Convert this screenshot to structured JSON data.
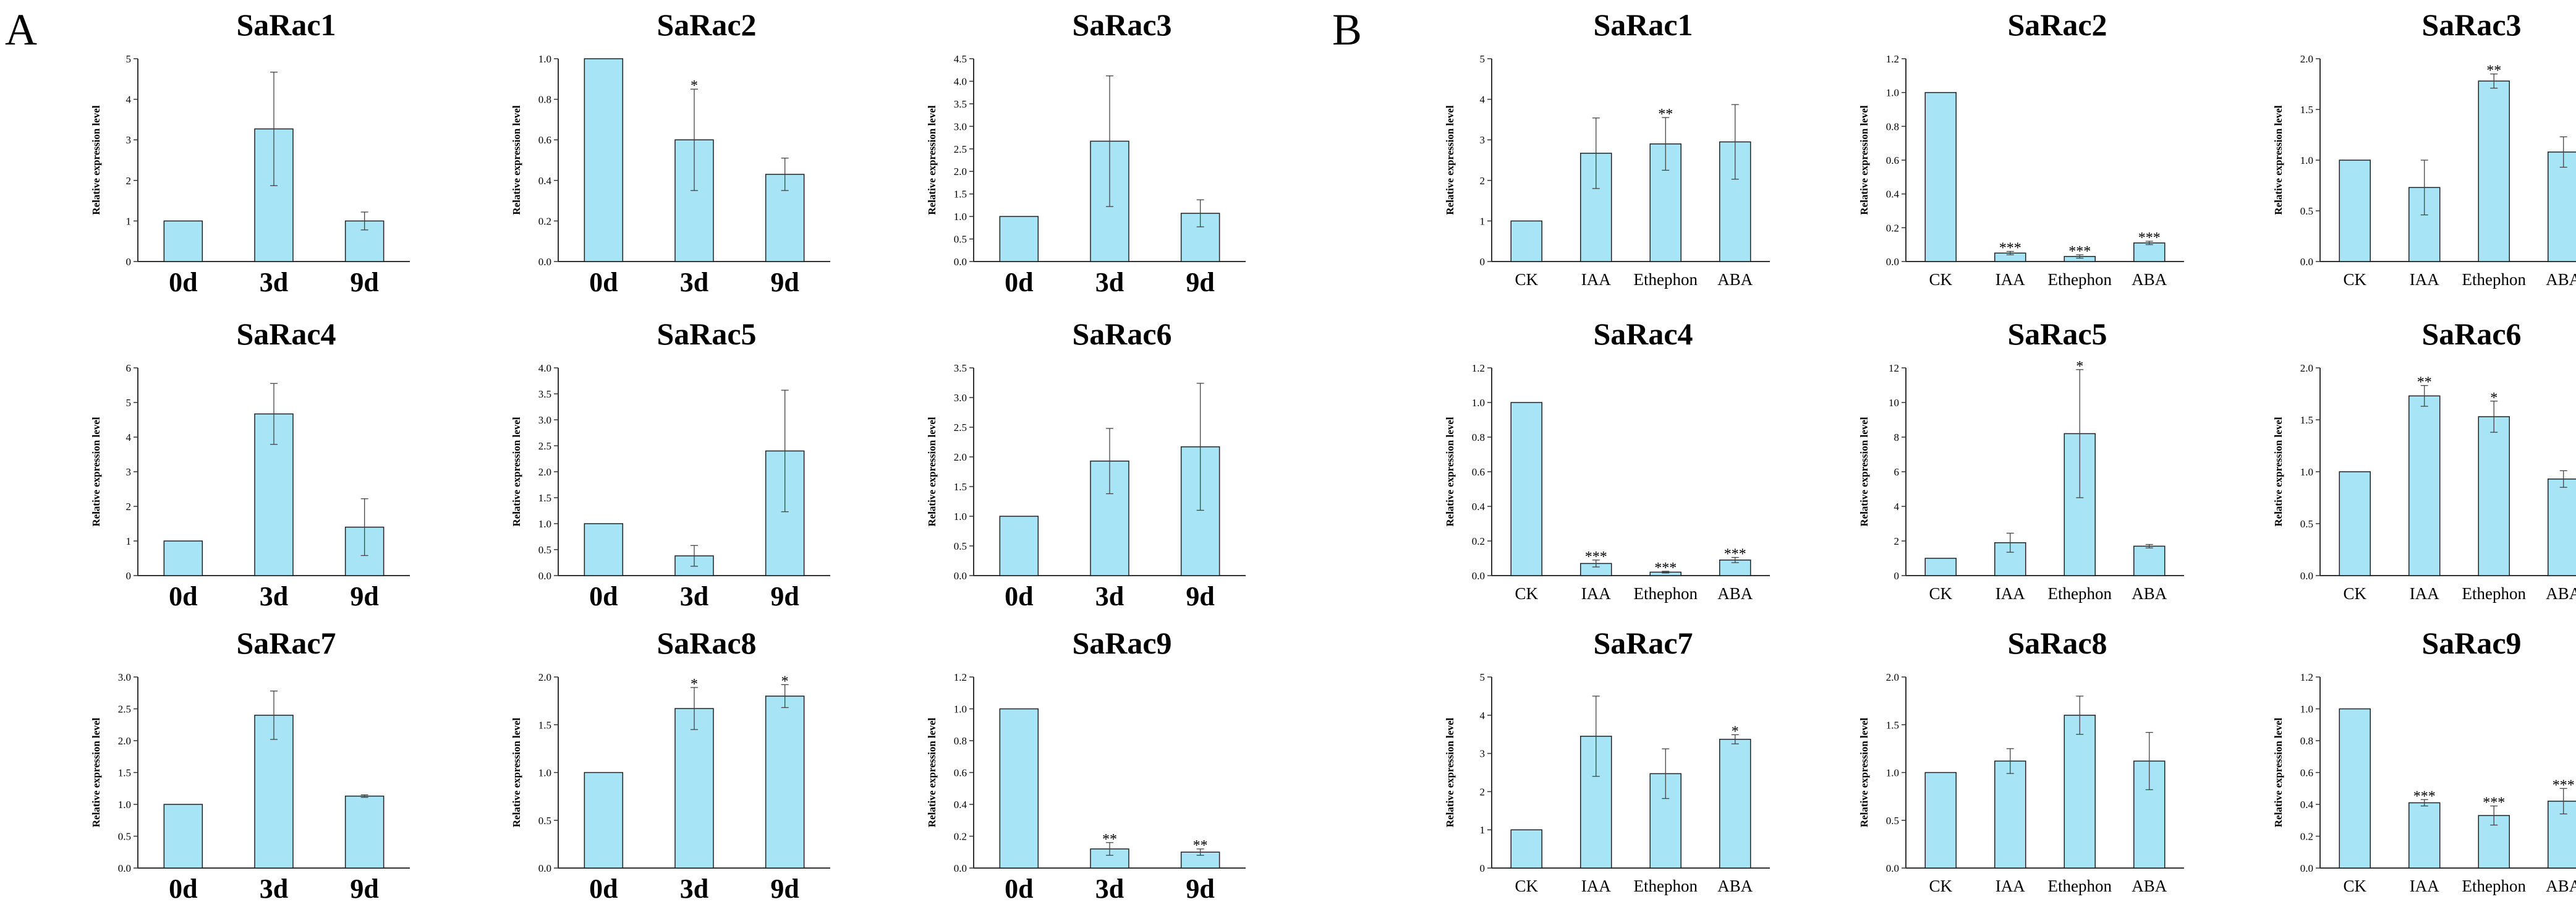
{
  "panels": [
    {
      "label": "A",
      "categories": [
        "0d",
        "3d",
        "9d"
      ]
    },
    {
      "label": "B",
      "categories": [
        "CK",
        "IAA",
        "Ethephon",
        "ABA"
      ]
    }
  ],
  "colors": {
    "bar": "#a6e4f6",
    "bar_edge": "#222222",
    "axis": "#333333"
  },
  "chart_data": [
    {
      "type": "bar",
      "panel": "A",
      "title": "SaRac1",
      "ylabel": "Relative expression level",
      "categories": [
        "0d",
        "3d",
        "9d"
      ],
      "values": [
        1.0,
        3.27,
        1.0
      ],
      "errors": [
        0,
        1.4,
        0.22
      ],
      "significance": [
        "",
        "",
        ""
      ],
      "ylim": [
        0,
        5
      ],
      "yticks": [
        "0",
        "1",
        "2",
        "3",
        "4",
        "5"
      ]
    },
    {
      "type": "bar",
      "panel": "A",
      "title": "SaRac2",
      "ylabel": "Relative expression level",
      "categories": [
        "0d",
        "3d",
        "9d"
      ],
      "values": [
        1.0,
        0.6,
        0.43
      ],
      "errors": [
        0,
        0.25,
        0.08
      ],
      "significance": [
        "",
        "*",
        ""
      ],
      "ylim": [
        0,
        1.0
      ],
      "yticks": [
        "0.0",
        "0.2",
        "0.4",
        "0.6",
        "0.8",
        "1.0"
      ]
    },
    {
      "type": "bar",
      "panel": "A",
      "title": "SaRac3",
      "ylabel": "Relative expression level",
      "categories": [
        "0d",
        "3d",
        "9d"
      ],
      "values": [
        1.0,
        2.67,
        1.07
      ],
      "errors": [
        0,
        1.45,
        0.3
      ],
      "significance": [
        "",
        "",
        ""
      ],
      "ylim": [
        0,
        4.5
      ],
      "yticks": [
        "0.0",
        "0.5",
        "1.0",
        "1.5",
        "2.0",
        "2.5",
        "3.0",
        "3.5",
        "4.0",
        "4.5"
      ]
    },
    {
      "type": "bar",
      "panel": "A",
      "title": "SaRac4",
      "ylabel": "Relative expression level",
      "categories": [
        "0d",
        "3d",
        "9d"
      ],
      "values": [
        1.0,
        4.67,
        1.4
      ],
      "errors": [
        0,
        0.88,
        0.82
      ],
      "significance": [
        "",
        "",
        ""
      ],
      "ylim": [
        0,
        6
      ],
      "yticks": [
        "0",
        "1",
        "2",
        "3",
        "4",
        "5",
        "6"
      ]
    },
    {
      "type": "bar",
      "panel": "A",
      "title": "SaRac5",
      "ylabel": "Relative expression level",
      "categories": [
        "0d",
        "3d",
        "9d"
      ],
      "values": [
        1.0,
        0.38,
        2.4
      ],
      "errors": [
        0,
        0.2,
        1.17
      ],
      "significance": [
        "",
        "",
        ""
      ],
      "ylim": [
        0,
        4.0
      ],
      "yticks": [
        "0.0",
        "0.5",
        "1.0",
        "1.5",
        "2.0",
        "2.5",
        "3.0",
        "3.5",
        "4.0"
      ]
    },
    {
      "type": "bar",
      "panel": "A",
      "title": "SaRac6",
      "ylabel": "Relative expression level",
      "categories": [
        "0d",
        "3d",
        "9d"
      ],
      "values": [
        1.0,
        1.93,
        2.17
      ],
      "errors": [
        0,
        0.55,
        1.07
      ],
      "significance": [
        "",
        "",
        ""
      ],
      "ylim": [
        0,
        3.5
      ],
      "yticks": [
        "0.0",
        "0.5",
        "1.0",
        "1.5",
        "2.0",
        "2.5",
        "3.0",
        "3.5"
      ]
    },
    {
      "type": "bar",
      "panel": "A",
      "title": "SaRac7",
      "ylabel": "Relative expression level",
      "categories": [
        "0d",
        "3d",
        "9d"
      ],
      "values": [
        1.0,
        2.4,
        1.13
      ],
      "errors": [
        0,
        0.38,
        0.02
      ],
      "significance": [
        "",
        "",
        ""
      ],
      "ylim": [
        0,
        3.0
      ],
      "yticks": [
        "0.0",
        "0.5",
        "1.0",
        "1.5",
        "2.0",
        "2.5",
        "3.0"
      ]
    },
    {
      "type": "bar",
      "panel": "A",
      "title": "SaRac8",
      "ylabel": "Relative expression level",
      "categories": [
        "0d",
        "3d",
        "9d"
      ],
      "values": [
        1.0,
        1.67,
        1.8
      ],
      "errors": [
        0,
        0.22,
        0.12
      ],
      "significance": [
        "",
        "*",
        "*"
      ],
      "ylim": [
        0,
        2.0
      ],
      "yticks": [
        "0.0",
        "0.5",
        "1.0",
        "1.5",
        "2.0"
      ]
    },
    {
      "type": "bar",
      "panel": "A",
      "title": "SaRac9",
      "ylabel": "Relative expression level",
      "categories": [
        "0d",
        "3d",
        "9d"
      ],
      "values": [
        1.0,
        0.12,
        0.1
      ],
      "errors": [
        0,
        0.04,
        0.02
      ],
      "significance": [
        "",
        "**",
        "**"
      ],
      "ylim": [
        0,
        1.2
      ],
      "yticks": [
        "0.0",
        "0.2",
        "0.4",
        "0.6",
        "0.8",
        "1.0",
        "1.2"
      ]
    },
    {
      "type": "bar",
      "panel": "B",
      "title": "SaRac1",
      "ylabel": "Relative expression level",
      "categories": [
        "CK",
        "IAA",
        "Ethephon",
        "ABA"
      ],
      "values": [
        1.0,
        2.67,
        2.9,
        2.95
      ],
      "errors": [
        0,
        0.87,
        0.65,
        0.92
      ],
      "significance": [
        "",
        "",
        "**",
        ""
      ],
      "ylim": [
        0,
        5
      ],
      "yticks": [
        "0",
        "1",
        "2",
        "3",
        "4",
        "5"
      ]
    },
    {
      "type": "bar",
      "panel": "B",
      "title": "SaRac2",
      "ylabel": "Relative expression level",
      "categories": [
        "CK",
        "IAA",
        "Ethephon",
        "ABA"
      ],
      "values": [
        1.0,
        0.05,
        0.03,
        0.11
      ],
      "errors": [
        0,
        0.01,
        0.01,
        0.01
      ],
      "significance": [
        "",
        "***",
        "***",
        "***"
      ],
      "ylim": [
        0,
        1.2
      ],
      "yticks": [
        "0.0",
        "0.2",
        "0.4",
        "0.6",
        "0.8",
        "1.0",
        "1.2"
      ]
    },
    {
      "type": "bar",
      "panel": "B",
      "title": "SaRac3",
      "ylabel": "Relative expression level",
      "categories": [
        "CK",
        "IAA",
        "Ethephon",
        "ABA"
      ],
      "values": [
        1.0,
        0.73,
        1.78,
        1.08
      ],
      "errors": [
        0,
        0.27,
        0.07,
        0.15
      ],
      "significance": [
        "",
        "",
        "**",
        ""
      ],
      "ylim": [
        0,
        2.0
      ],
      "yticks": [
        "0.0",
        "0.5",
        "1.0",
        "1.5",
        "2.0"
      ]
    },
    {
      "type": "bar",
      "panel": "B",
      "title": "SaRac4",
      "ylabel": "Relative expression level",
      "categories": [
        "CK",
        "IAA",
        "Ethephon",
        "ABA"
      ],
      "values": [
        1.0,
        0.07,
        0.02,
        0.09
      ],
      "errors": [
        0,
        0.02,
        0.005,
        0.015
      ],
      "significance": [
        "",
        "***",
        "***",
        "***"
      ],
      "ylim": [
        0,
        1.2
      ],
      "yticks": [
        "0.0",
        "0.2",
        "0.4",
        "0.6",
        "0.8",
        "1.0",
        "1.2"
      ]
    },
    {
      "type": "bar",
      "panel": "B",
      "title": "SaRac5",
      "ylabel": "Relative expression level",
      "categories": [
        "CK",
        "IAA",
        "Ethephon",
        "ABA"
      ],
      "values": [
        1.0,
        1.9,
        8.2,
        1.7
      ],
      "errors": [
        0,
        0.55,
        3.7,
        0.1
      ],
      "significance": [
        "",
        "",
        "*",
        ""
      ],
      "ylim": [
        0,
        12
      ],
      "yticks": [
        "0",
        "2",
        "4",
        "6",
        "8",
        "10",
        "12"
      ]
    },
    {
      "type": "bar",
      "panel": "B",
      "title": "SaRac6",
      "ylabel": "Relative expression level",
      "categories": [
        "CK",
        "IAA",
        "Ethephon",
        "ABA"
      ],
      "values": [
        1.0,
        1.73,
        1.53,
        0.93
      ],
      "errors": [
        0,
        0.1,
        0.15,
        0.08
      ],
      "significance": [
        "",
        "**",
        "*",
        ""
      ],
      "ylim": [
        0,
        2.0
      ],
      "yticks": [
        "0.0",
        "0.5",
        "1.0",
        "1.5",
        "2.0"
      ]
    },
    {
      "type": "bar",
      "panel": "B",
      "title": "SaRac7",
      "ylabel": "Relative expression level",
      "categories": [
        "CK",
        "IAA",
        "Ethephon",
        "ABA"
      ],
      "values": [
        1.0,
        3.45,
        2.47,
        3.37
      ],
      "errors": [
        0,
        1.05,
        0.65,
        0.12
      ],
      "significance": [
        "",
        "",
        "",
        "*"
      ],
      "ylim": [
        0,
        5
      ],
      "yticks": [
        "0",
        "1",
        "2",
        "3",
        "4",
        "5"
      ]
    },
    {
      "type": "bar",
      "panel": "B",
      "title": "SaRac8",
      "ylabel": "Relative expression level",
      "categories": [
        "CK",
        "IAA",
        "Ethephon",
        "ABA"
      ],
      "values": [
        1.0,
        1.12,
        1.6,
        1.12
      ],
      "errors": [
        0,
        0.13,
        0.2,
        0.3
      ],
      "significance": [
        "",
        "",
        "",
        ""
      ],
      "ylim": [
        0,
        2.0
      ],
      "yticks": [
        "0.0",
        "0.5",
        "1.0",
        "1.5",
        "2.0"
      ]
    },
    {
      "type": "bar",
      "panel": "B",
      "title": "SaRac9",
      "ylabel": "Relative expression level",
      "categories": [
        "CK",
        "IAA",
        "Ethephon",
        "ABA"
      ],
      "values": [
        1.0,
        0.41,
        0.33,
        0.42
      ],
      "errors": [
        0,
        0.02,
        0.06,
        0.08
      ],
      "significance": [
        "",
        "***",
        "***",
        "***"
      ],
      "ylim": [
        0,
        1.2
      ],
      "yticks": [
        "0.0",
        "0.2",
        "0.4",
        "0.6",
        "0.8",
        "1.0",
        "1.2"
      ]
    }
  ]
}
